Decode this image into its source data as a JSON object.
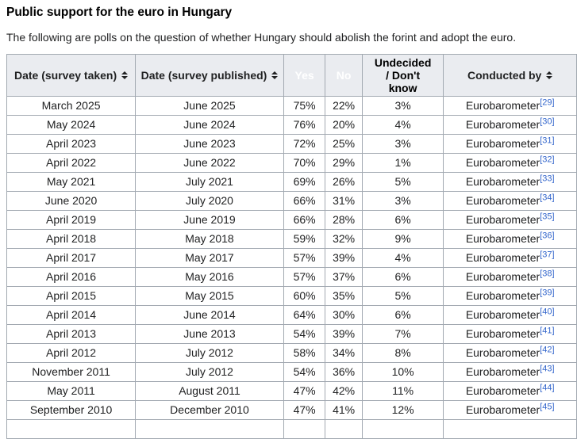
{
  "page": {
    "title": "Public support for the euro in Hungary",
    "intro": "The following are polls on the question of whether Hungary should abolish the forint and adopt the euro."
  },
  "colors": {
    "yes_header": "#038003",
    "no_header": "#ff0000",
    "undecided_header": "#c0c0c0",
    "header_bg": "#eaecf0",
    "border": "#a2a9b1",
    "yes_majority_cell": "#90ee90",
    "yes_plurality_cell": "#c5f7d2",
    "link": "#3366cc"
  },
  "table": {
    "columns": [
      {
        "name": "date-taken",
        "label": "Date (survey taken)",
        "sortable": true
      },
      {
        "name": "date-published",
        "label": "Date (survey published)",
        "sortable": true
      },
      {
        "name": "yes",
        "label": "Yes",
        "sortable": false
      },
      {
        "name": "no",
        "label": "No",
        "sortable": false
      },
      {
        "name": "undecided",
        "label": "Undecided\n/ Don't\nknow",
        "sortable": false
      },
      {
        "name": "conducted-by",
        "label": "Conducted by",
        "sortable": true
      }
    ],
    "rows": [
      {
        "taken": "March 2025",
        "published": "June 2025",
        "yes": "75%",
        "no": "22%",
        "undecided": "3%",
        "conducted_by": "Eurobarometer",
        "ref": "[29]",
        "shade": "majority"
      },
      {
        "taken": "May 2024",
        "published": "June 2024",
        "yes": "76%",
        "no": "20%",
        "undecided": "4%",
        "conducted_by": "Eurobarometer",
        "ref": "[30]",
        "shade": "majority"
      },
      {
        "taken": "April 2023",
        "published": "June 2023",
        "yes": "72%",
        "no": "25%",
        "undecided": "3%",
        "conducted_by": "Eurobarometer",
        "ref": "[31]",
        "shade": "majority"
      },
      {
        "taken": "April 2022",
        "published": "June 2022",
        "yes": "70%",
        "no": "29%",
        "undecided": "1%",
        "conducted_by": "Eurobarometer",
        "ref": "[32]",
        "shade": "majority"
      },
      {
        "taken": "May 2021",
        "published": "July 2021",
        "yes": "69%",
        "no": "26%",
        "undecided": "5%",
        "conducted_by": "Eurobarometer",
        "ref": "[33]",
        "shade": "majority"
      },
      {
        "taken": "June 2020",
        "published": "July 2020",
        "yes": "66%",
        "no": "31%",
        "undecided": "3%",
        "conducted_by": "Eurobarometer",
        "ref": "[34]",
        "shade": "majority"
      },
      {
        "taken": "April 2019",
        "published": "June 2019",
        "yes": "66%",
        "no": "28%",
        "undecided": "6%",
        "conducted_by": "Eurobarometer",
        "ref": "[35]",
        "shade": "majority"
      },
      {
        "taken": "April 2018",
        "published": "May 2018",
        "yes": "59%",
        "no": "32%",
        "undecided": "9%",
        "conducted_by": "Eurobarometer",
        "ref": "[36]",
        "shade": "majority"
      },
      {
        "taken": "April 2017",
        "published": "May 2017",
        "yes": "57%",
        "no": "39%",
        "undecided": "4%",
        "conducted_by": "Eurobarometer",
        "ref": "[37]",
        "shade": "majority"
      },
      {
        "taken": "April 2016",
        "published": "May 2016",
        "yes": "57%",
        "no": "37%",
        "undecided": "6%",
        "conducted_by": "Eurobarometer",
        "ref": "[38]",
        "shade": "majority"
      },
      {
        "taken": "April 2015",
        "published": "May 2015",
        "yes": "60%",
        "no": "35%",
        "undecided": "5%",
        "conducted_by": "Eurobarometer",
        "ref": "[39]",
        "shade": "majority"
      },
      {
        "taken": "April 2014",
        "published": "June 2014",
        "yes": "64%",
        "no": "30%",
        "undecided": "6%",
        "conducted_by": "Eurobarometer",
        "ref": "[40]",
        "shade": "majority"
      },
      {
        "taken": "April 2013",
        "published": "June 2013",
        "yes": "54%",
        "no": "39%",
        "undecided": "7%",
        "conducted_by": "Eurobarometer",
        "ref": "[41]",
        "shade": "majority"
      },
      {
        "taken": "April 2012",
        "published": "July 2012",
        "yes": "58%",
        "no": "34%",
        "undecided": "8%",
        "conducted_by": "Eurobarometer",
        "ref": "[42]",
        "shade": "majority"
      },
      {
        "taken": "November 2011",
        "published": "July 2012",
        "yes": "54%",
        "no": "36%",
        "undecided": "10%",
        "conducted_by": "Eurobarometer",
        "ref": "[43]",
        "shade": "majority"
      },
      {
        "taken": "May 2011",
        "published": "August 2011",
        "yes": "47%",
        "no": "42%",
        "undecided": "11%",
        "conducted_by": "Eurobarometer",
        "ref": "[44]",
        "shade": "plurality"
      },
      {
        "taken": "September 2010",
        "published": "December 2010",
        "yes": "47%",
        "no": "41%",
        "undecided": "12%",
        "conducted_by": "Eurobarometer",
        "ref": "[45]",
        "shade": "plurality"
      },
      {
        "taken": "",
        "published": "",
        "yes": "",
        "no": "",
        "undecided": "",
        "conducted_by": "",
        "ref": "",
        "shade": "plurality"
      }
    ]
  }
}
